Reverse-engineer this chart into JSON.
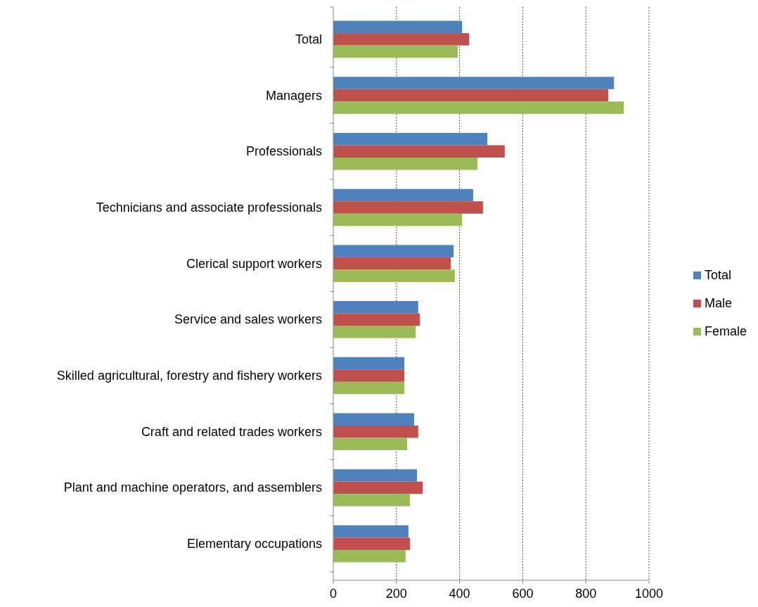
{
  "chart_data": {
    "type": "bar",
    "orientation": "horizontal",
    "categories": [
      "Total",
      "Managers",
      "Professionals",
      "Technicians and associate professionals",
      "Clerical support workers",
      "Service and sales workers",
      "Skilled agricultural, forestry and fishery workers",
      "Craft and related trades workers",
      "Plant and machine operators, and assemblers",
      "Elementary occupations"
    ],
    "series": [
      {
        "name": "Total",
        "color": "#4f81bd",
        "values": [
          408,
          889,
          488,
          443,
          381,
          269,
          225,
          256,
          265,
          238
        ]
      },
      {
        "name": "Male",
        "color": "#c0504d",
        "values": [
          430,
          871,
          543,
          474,
          372,
          274,
          225,
          269,
          283,
          243
        ]
      },
      {
        "name": "Female",
        "color": "#9bbb59",
        "values": [
          394,
          920,
          457,
          408,
          385,
          261,
          225,
          234,
          243,
          229
        ]
      }
    ],
    "xlim": [
      0,
      1000
    ],
    "xticks": [
      0,
      200,
      400,
      600,
      800,
      1000
    ],
    "grid": "x",
    "legend": "right"
  }
}
